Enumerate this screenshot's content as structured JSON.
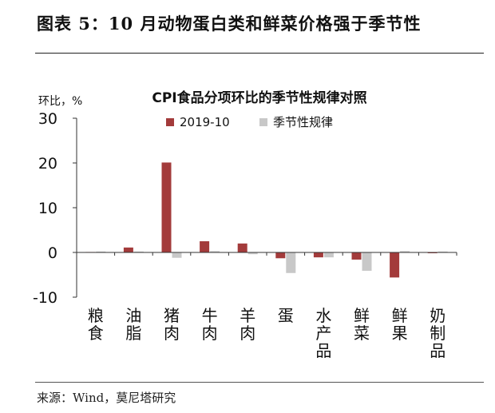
{
  "figure": {
    "title": "图表 5：10 月动物蛋白类和鲜菜价格强于季节性",
    "source": "来源：Wind，莫尼塔研究"
  },
  "colors": {
    "series_2019": "#a33b3b",
    "series_seasonal": "#c8c8c8",
    "axis": "#333333"
  },
  "chart_data": {
    "type": "bar",
    "title": "CPI食品分项环比的季节性规律对照",
    "ylabel": "环比，%",
    "ylim": [
      -10,
      30
    ],
    "yticks": [
      -10,
      0,
      10,
      20,
      30
    ],
    "grid": false,
    "legend_position": "top",
    "categories": [
      "粮食",
      "油脂",
      "猪肉",
      "牛肉",
      "羊肉",
      "蛋",
      "水产品",
      "鲜菜",
      "鲜果",
      "奶制品"
    ],
    "series": [
      {
        "name": "2019-10",
        "values": [
          0.1,
          1.1,
          20.1,
          2.5,
          2.0,
          -1.3,
          -1.1,
          -1.6,
          -5.6,
          0.0
        ]
      },
      {
        "name": "季节性规律",
        "values": [
          0.2,
          0.2,
          -1.2,
          0.3,
          -0.4,
          -4.6,
          -1.1,
          -4.1,
          0.3,
          0.2
        ]
      }
    ]
  }
}
